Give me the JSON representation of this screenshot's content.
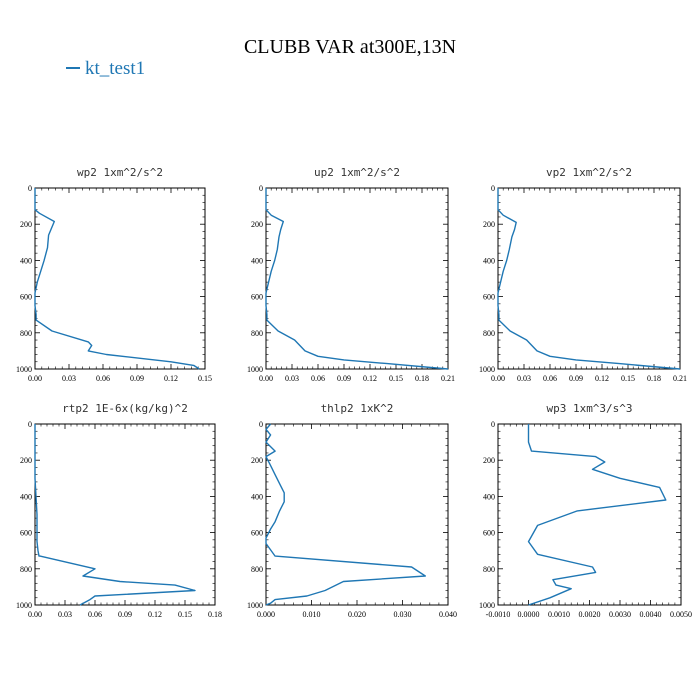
{
  "figure_title": "CLUBB VAR at300E,13N",
  "legend": {
    "label": "kt_test1",
    "color": "#1f77b4"
  },
  "chart_data": [
    {
      "type": "line",
      "title": "wp2  1xm^2/s^2",
      "xlim": [
        0,
        0.15
      ],
      "ylim": [
        1000,
        0
      ],
      "xticks": [
        0,
        0.03,
        0.06,
        0.09,
        0.12,
        0.15
      ],
      "xticklabels": [
        "0.00",
        "0.03",
        "0.06",
        "0.09",
        "0.12",
        "0.15"
      ],
      "yticks": [
        0,
        200,
        400,
        600,
        800,
        1000
      ],
      "yticklabels": [
        "0",
        "200",
        "400",
        "600",
        "800",
        "1000"
      ],
      "series": [
        {
          "name": "kt_test1",
          "color": "#1f77b4",
          "x": [
            0.0,
            0.0,
            0.004,
            0.017,
            0.014,
            0.012,
            0.011,
            0.008,
            0.005,
            0.002,
            0.0,
            0.0,
            0.001,
            0.001,
            0.015,
            0.047,
            0.05,
            0.047,
            0.063,
            0.12,
            0.14,
            0.145
          ],
          "y": [
            0,
            120,
            140,
            185,
            230,
            260,
            330,
            400,
            460,
            520,
            580,
            650,
            700,
            730,
            790,
            850,
            870,
            900,
            920,
            960,
            980,
            1000
          ]
        }
      ]
    },
    {
      "type": "line",
      "title": "up2  1xm^2/s^2",
      "xlim": [
        0,
        0.21
      ],
      "ylim": [
        1000,
        0
      ],
      "xticks": [
        0,
        0.03,
        0.06,
        0.09,
        0.12,
        0.15,
        0.18,
        0.21
      ],
      "xticklabels": [
        "0.00",
        "0.03",
        "0.06",
        "0.09",
        "0.12",
        "0.15",
        "0.18",
        "0.21"
      ],
      "yticks": [
        0,
        200,
        400,
        600,
        800,
        1000
      ],
      "yticklabels": [
        "0",
        "200",
        "400",
        "600",
        "800",
        "1000"
      ],
      "series": [
        {
          "name": "kt_test1",
          "color": "#1f77b4",
          "x": [
            0.0,
            0.0,
            0.006,
            0.02,
            0.017,
            0.015,
            0.013,
            0.01,
            0.006,
            0.003,
            0.0,
            0.0,
            0.001,
            0.001,
            0.014,
            0.033,
            0.045,
            0.06,
            0.09,
            0.14,
            0.21
          ],
          "y": [
            0,
            120,
            150,
            185,
            230,
            270,
            340,
            400,
            460,
            520,
            580,
            650,
            700,
            730,
            790,
            840,
            900,
            930,
            950,
            970,
            1000
          ]
        }
      ]
    },
    {
      "type": "line",
      "title": "vp2  1xm^2/s^2",
      "xlim": [
        0,
        0.21
      ],
      "ylim": [
        1000,
        0
      ],
      "xticks": [
        0,
        0.03,
        0.06,
        0.09,
        0.12,
        0.15,
        0.18,
        0.21
      ],
      "xticklabels": [
        "0.00",
        "0.03",
        "0.06",
        "0.09",
        "0.12",
        "0.15",
        "0.18",
        "0.21"
      ],
      "yticks": [
        0,
        200,
        400,
        600,
        800,
        1000
      ],
      "yticklabels": [
        "0",
        "200",
        "400",
        "600",
        "800",
        "1000"
      ],
      "series": [
        {
          "name": "kt_test1",
          "color": "#1f77b4",
          "x": [
            0.0,
            0.0,
            0.006,
            0.021,
            0.019,
            0.016,
            0.013,
            0.01,
            0.006,
            0.003,
            0.0,
            0.0,
            0.001,
            0.001,
            0.014,
            0.033,
            0.045,
            0.06,
            0.09,
            0.14,
            0.21
          ],
          "y": [
            0,
            120,
            150,
            190,
            230,
            270,
            340,
            400,
            460,
            520,
            580,
            650,
            700,
            730,
            790,
            840,
            900,
            930,
            950,
            970,
            1000
          ]
        }
      ]
    },
    {
      "type": "line",
      "title": "rtp2  1E-6x(kg/kg)^2",
      "xlim": [
        0,
        0.18
      ],
      "ylim": [
        1000,
        0
      ],
      "xticks": [
        0,
        0.03,
        0.06,
        0.09,
        0.12,
        0.15,
        0.18
      ],
      "xticklabels": [
        "0.00",
        "0.03",
        "0.06",
        "0.09",
        "0.12",
        "0.15",
        "0.18"
      ],
      "yticks": [
        0,
        200,
        400,
        600,
        800,
        1000
      ],
      "yticklabels": [
        "0",
        "200",
        "400",
        "600",
        "800",
        "1000"
      ],
      "series": [
        {
          "name": "kt_test1",
          "color": "#1f77b4",
          "x": [
            0.0,
            0.0,
            0.001,
            0.002,
            0.002,
            0.002,
            0.003,
            0.004,
            0.005,
            0.06,
            0.048,
            0.085,
            0.14,
            0.16,
            0.06,
            0.055,
            0.045
          ],
          "y": [
            0,
            300,
            400,
            500,
            600,
            650,
            700,
            730,
            730,
            800,
            840,
            870,
            890,
            920,
            950,
            970,
            1000
          ]
        }
      ]
    },
    {
      "type": "line",
      "title": "thlp2  1xK^2",
      "xlim": [
        0,
        0.04
      ],
      "ylim": [
        1000,
        0
      ],
      "xticks": [
        0,
        0.01,
        0.02,
        0.03,
        0.04
      ],
      "xticklabels": [
        "0.000",
        "0.010",
        "0.020",
        "0.030",
        "0.040"
      ],
      "yticks": [
        0,
        200,
        400,
        600,
        800,
        1000
      ],
      "yticklabels": [
        "0",
        "200",
        "400",
        "600",
        "800",
        "1000"
      ],
      "series": [
        {
          "name": "kt_test1",
          "color": "#1f77b4",
          "x": [
            0.001,
            0.0,
            0.001,
            0.0,
            0.002,
            0.0,
            0.001,
            0.002,
            0.003,
            0.004,
            0.004,
            0.003,
            0.002,
            0.001,
            0.0,
            0.0,
            0.002,
            0.032,
            0.035,
            0.017,
            0.013,
            0.009,
            0.002,
            0.001,
            0.0
          ],
          "y": [
            0,
            30,
            60,
            100,
            150,
            180,
            230,
            280,
            330,
            380,
            430,
            480,
            540,
            580,
            630,
            660,
            730,
            790,
            840,
            870,
            920,
            950,
            970,
            990,
            1000
          ]
        }
      ]
    },
    {
      "type": "line",
      "title": "wp3  1xm^3/s^3",
      "xlim": [
        -0.001,
        0.005
      ],
      "ylim": [
        1000,
        0
      ],
      "xticks": [
        -0.001,
        0.0,
        0.001,
        0.002,
        0.003,
        0.004,
        0.005
      ],
      "xticklabels": [
        "-0.0010",
        "0.0000",
        "0.0010",
        "0.0020",
        "0.0030",
        "0.0040",
        "0.0050"
      ],
      "yticks": [
        0,
        200,
        400,
        600,
        800,
        1000
      ],
      "yticklabels": [
        "0",
        "200",
        "400",
        "600",
        "800",
        "1000"
      ],
      "series": [
        {
          "name": "kt_test1",
          "color": "#1f77b4",
          "x": [
            0.0,
            0.0,
            0.0001,
            0.0022,
            0.0025,
            0.0021,
            0.003,
            0.0043,
            0.0045,
            0.0016,
            0.0003,
            0.0,
            0.0003,
            0.0021,
            0.0022,
            0.0008,
            0.0009,
            0.0014,
            0.0007,
            0.0
          ],
          "y": [
            0,
            100,
            150,
            180,
            210,
            250,
            300,
            350,
            420,
            480,
            560,
            650,
            720,
            790,
            820,
            860,
            890,
            910,
            960,
            1000
          ]
        }
      ]
    }
  ]
}
